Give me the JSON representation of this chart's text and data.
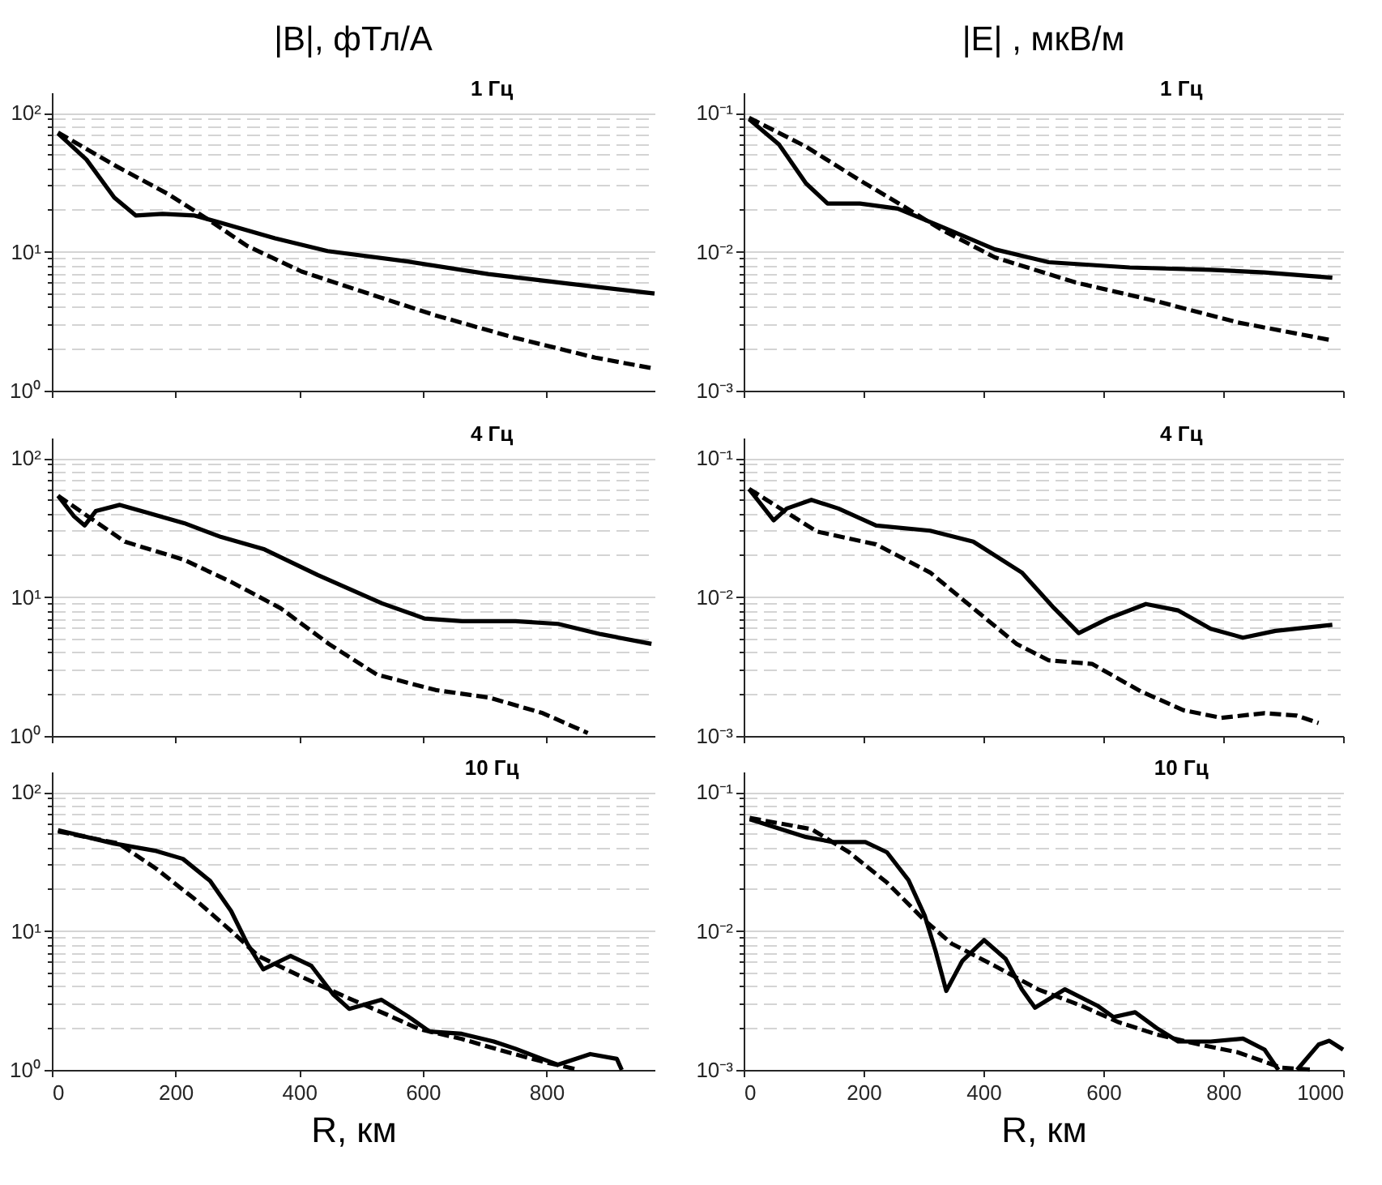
{
  "chart_data": [
    {
      "type": "line",
      "title": "|B|,  фТл/А",
      "annotations": [
        "1 Гц"
      ],
      "log": "y",
      "grid": "y",
      "tick_labels": "y",
      "xlim": [
        0,
        975
      ],
      "xticks": [
        0,
        200,
        400,
        600,
        800
      ],
      "ylim": [
        1,
        140
      ],
      "yticks": [
        {
          "value": 1,
          "label": "10⁰"
        },
        {
          "value": 2,
          "label": null
        },
        {
          "value": 3,
          "label": null
        },
        {
          "value": 4,
          "label": null
        },
        {
          "value": 5,
          "label": null
        },
        {
          "value": 6,
          "label": null
        },
        {
          "value": 7,
          "label": null
        },
        {
          "value": 8,
          "label": null
        },
        {
          "value": 9,
          "label": null
        },
        {
          "value": 10,
          "label": "10¹"
        },
        {
          "value": 20,
          "label": null
        },
        {
          "value": 30,
          "label": null
        },
        {
          "value": 40,
          "label": null
        },
        {
          "value": 50,
          "label": null
        },
        {
          "value": 60,
          "label": null
        },
        {
          "value": 70,
          "label": null
        },
        {
          "value": 80,
          "label": null
        },
        {
          "value": 90,
          "label": null
        },
        {
          "value": 100,
          "label": "10²"
        }
      ],
      "series": [
        {
          "color": "#000000",
          "line_style": "solid",
          "x": [
            10,
            56,
            101,
            136,
            179,
            231,
            274,
            361,
            446,
            576,
            706,
            835,
            975
          ],
          "values": [
            71,
            46,
            24.5,
            18.2,
            18.7,
            18.2,
            16.1,
            12.5,
            10.1,
            8.5,
            6.9,
            5.9,
            5.0
          ]
        },
        {
          "color": "#000000",
          "line_style": "dashed",
          "x": [
            10,
            101,
            188,
            249,
            316,
            404,
            489,
            619,
            749,
            879,
            975
          ],
          "values": [
            72,
            42,
            26,
            17.5,
            11,
            7.2,
            5.4,
            3.5,
            2.4,
            1.73,
            1.44
          ]
        }
      ]
    },
    {
      "type": "line",
      "title": "|E| , мкВ/м",
      "annotations": [
        "1 Гц"
      ],
      "log": "y",
      "grid": "y",
      "tick_labels": "y",
      "xlim": [
        0,
        1000
      ],
      "xticks": [
        0,
        200,
        400,
        600,
        800,
        1000
      ],
      "ylim": [
        0.001,
        0.14
      ],
      "yticks": [
        {
          "value": 0.001,
          "label": "10⁻³"
        },
        {
          "value": 0.002,
          "label": null
        },
        {
          "value": 0.003,
          "label": null
        },
        {
          "value": 0.004,
          "label": null
        },
        {
          "value": 0.005,
          "label": null
        },
        {
          "value": 0.006,
          "label": null
        },
        {
          "value": 0.007,
          "label": null
        },
        {
          "value": 0.008,
          "label": null
        },
        {
          "value": 0.009,
          "label": null
        },
        {
          "value": 0.01,
          "label": "10⁻²"
        },
        {
          "value": 0.02,
          "label": null
        },
        {
          "value": 0.03,
          "label": null
        },
        {
          "value": 0.04,
          "label": null
        },
        {
          "value": 0.05,
          "label": null
        },
        {
          "value": 0.06,
          "label": null
        },
        {
          "value": 0.07,
          "label": null
        },
        {
          "value": 0.08,
          "label": null
        },
        {
          "value": 0.09,
          "label": null
        },
        {
          "value": 0.1,
          "label": "10⁻¹"
        }
      ],
      "series": [
        {
          "color": "#000000",
          "line_style": "solid",
          "x": [
            9,
            59,
            104,
            140,
            194,
            257,
            329,
            419,
            509,
            644,
            779,
            869,
            982
          ],
          "values": [
            0.09,
            0.059,
            0.031,
            0.0222,
            0.0222,
            0.0204,
            0.0152,
            0.0104,
            0.0084,
            0.0077,
            0.0074,
            0.0071,
            0.0065
          ]
        },
        {
          "color": "#000000",
          "line_style": "dashed",
          "x": [
            9,
            104,
            194,
            266,
            329,
            419,
            554,
            689,
            824,
            982
          ],
          "values": [
            0.092,
            0.057,
            0.0326,
            0.0213,
            0.0145,
            0.0091,
            0.006,
            0.0044,
            0.0031,
            0.0023
          ]
        }
      ]
    },
    {
      "type": "line",
      "annotations": [
        "4 Гц"
      ],
      "log": "y",
      "grid": "y",
      "tick_labels": "y",
      "xlim": [
        0,
        975
      ],
      "xticks": [
        0,
        200,
        400,
        600,
        800
      ],
      "ylim": [
        1,
        140
      ],
      "yticks": [
        {
          "value": 1,
          "label": "10⁰"
        },
        {
          "value": 2,
          "label": null
        },
        {
          "value": 3,
          "label": null
        },
        {
          "value": 4,
          "label": null
        },
        {
          "value": 5,
          "label": null
        },
        {
          "value": 6,
          "label": null
        },
        {
          "value": 7,
          "label": null
        },
        {
          "value": 8,
          "label": null
        },
        {
          "value": 9,
          "label": null
        },
        {
          "value": 10,
          "label": "10¹"
        },
        {
          "value": 20,
          "label": null
        },
        {
          "value": 30,
          "label": null
        },
        {
          "value": 40,
          "label": null
        },
        {
          "value": 50,
          "label": null
        },
        {
          "value": 60,
          "label": null
        },
        {
          "value": 70,
          "label": null
        },
        {
          "value": 80,
          "label": null
        },
        {
          "value": 90,
          "label": null
        },
        {
          "value": 100,
          "label": "10²"
        }
      ],
      "series": [
        {
          "color": "#000000",
          "line_style": "solid",
          "x": [
            10,
            36,
            53,
            71,
            110,
            145,
            214,
            274,
            344,
            430,
            534,
            603,
            664,
            750,
            819,
            888,
            970
          ],
          "values": [
            53.5,
            38,
            32.7,
            41.5,
            46,
            41.5,
            34,
            27,
            22,
            14.4,
            9.0,
            7.0,
            6.7,
            6.7,
            6.4,
            5.4,
            4.6
          ]
        },
        {
          "color": "#000000",
          "line_style": "dashed",
          "x": [
            10,
            118,
            214,
            292,
            370,
            448,
            526,
            621,
            707,
            794,
            867
          ],
          "values": [
            53.5,
            25,
            18.5,
            12.7,
            8.3,
            4.6,
            2.76,
            2.14,
            1.89,
            1.46,
            1.05
          ]
        }
      ]
    },
    {
      "type": "line",
      "annotations": [
        "4 Гц"
      ],
      "log": "y",
      "grid": "y",
      "tick_labels": "y",
      "xlim": [
        0,
        1000
      ],
      "xticks": [
        0,
        200,
        400,
        600,
        800,
        1000
      ],
      "ylim": [
        0.001,
        0.14
      ],
      "yticks": [
        {
          "value": 0.001,
          "label": "10⁻³"
        },
        {
          "value": 0.002,
          "label": null
        },
        {
          "value": 0.003,
          "label": null
        },
        {
          "value": 0.004,
          "label": null
        },
        {
          "value": 0.005,
          "label": null
        },
        {
          "value": 0.006,
          "label": null
        },
        {
          "value": 0.007,
          "label": null
        },
        {
          "value": 0.008,
          "label": null
        },
        {
          "value": 0.009,
          "label": null
        },
        {
          "value": 0.01,
          "label": "10⁻²"
        },
        {
          "value": 0.02,
          "label": null
        },
        {
          "value": 0.03,
          "label": null
        },
        {
          "value": 0.04,
          "label": null
        },
        {
          "value": 0.05,
          "label": null
        },
        {
          "value": 0.06,
          "label": null
        },
        {
          "value": 0.07,
          "label": null
        },
        {
          "value": 0.08,
          "label": null
        },
        {
          "value": 0.09,
          "label": null
        },
        {
          "value": 0.1,
          "label": "10⁻¹"
        }
      ],
      "series": [
        {
          "color": "#000000",
          "line_style": "solid",
          "x": [
            9,
            50,
            72,
            113,
            158,
            221,
            311,
            383,
            464,
            518,
            559,
            608,
            671,
            725,
            779,
            833,
            887,
            982
          ],
          "values": [
            0.0597,
            0.0356,
            0.0433,
            0.05,
            0.0433,
            0.0327,
            0.03,
            0.025,
            0.015,
            0.0083,
            0.0055,
            0.007,
            0.0089,
            0.008,
            0.0059,
            0.0051,
            0.0057,
            0.0063
          ]
        },
        {
          "color": "#000000",
          "line_style": "dashed",
          "x": [
            9,
            122,
            221,
            311,
            383,
            455,
            509,
            581,
            662,
            734,
            797,
            869,
            923,
            959
          ],
          "values": [
            0.06,
            0.0296,
            0.0239,
            0.015,
            0.0083,
            0.0046,
            0.0035,
            0.0033,
            0.0021,
            0.00153,
            0.00135,
            0.00146,
            0.0014,
            0.00124
          ]
        }
      ]
    },
    {
      "type": "line",
      "annotations": [
        "10  Гц"
      ],
      "xlabel": "R, км",
      "log": "y",
      "grid": "y",
      "xlim": [
        0,
        975
      ],
      "xticks": [
        0,
        200,
        400,
        600,
        800
      ],
      "ylim": [
        1,
        140
      ],
      "yticks": [
        {
          "value": 1,
          "label": "10⁰"
        },
        {
          "value": 2,
          "label": null
        },
        {
          "value": 3,
          "label": null
        },
        {
          "value": 4,
          "label": null
        },
        {
          "value": 5,
          "label": null
        },
        {
          "value": 6,
          "label": null
        },
        {
          "value": 7,
          "label": null
        },
        {
          "value": 8,
          "label": null
        },
        {
          "value": 9,
          "label": null
        },
        {
          "value": 10,
          "label": "10¹"
        },
        {
          "value": 20,
          "label": null
        },
        {
          "value": 30,
          "label": null
        },
        {
          "value": 40,
          "label": null
        },
        {
          "value": 50,
          "label": null
        },
        {
          "value": 60,
          "label": null
        },
        {
          "value": 70,
          "label": null
        },
        {
          "value": 80,
          "label": null
        },
        {
          "value": 90,
          "label": null
        },
        {
          "value": 100,
          "label": "10²"
        }
      ],
      "series": [
        {
          "color": "#000000",
          "line_style": "solid",
          "x": [
            10,
            100,
            169,
            212,
            256,
            290,
            316,
            342,
            386,
            420,
            455,
            481,
            533,
            576,
            611,
            663,
            715,
            750,
            793,
            819,
            871,
            914,
            922
          ],
          "values": [
            53,
            42.6,
            37.6,
            33,
            22.9,
            13.9,
            8.1,
            5.3,
            6.6,
            5.6,
            3.5,
            2.75,
            3.2,
            2.43,
            1.89,
            1.82,
            1.6,
            1.42,
            1.2,
            1.09,
            1.3,
            1.2,
            1.0
          ]
        },
        {
          "color": "#000000",
          "line_style": "dashed",
          "x": [
            10,
            108,
            169,
            230,
            290,
            334,
            403,
            472,
            542,
            594,
            663,
            732,
            793,
            853
          ],
          "values": [
            52,
            42.6,
            28,
            17.1,
            10,
            6.6,
            4.7,
            3.4,
            2.5,
            1.97,
            1.67,
            1.36,
            1.15,
            1.0
          ]
        }
      ]
    },
    {
      "type": "line",
      "annotations": [
        "10 Гц"
      ],
      "xlabel": "R, км",
      "log": "y",
      "grid": "y",
      "xlim": [
        0,
        1000
      ],
      "xticks": [
        0,
        200,
        400,
        600,
        800,
        1000
      ],
      "ylim": [
        0.001,
        0.14
      ],
      "yticks": [
        {
          "value": 0.001,
          "label": "10⁻³"
        },
        {
          "value": 0.002,
          "label": null
        },
        {
          "value": 0.003,
          "label": null
        },
        {
          "value": 0.004,
          "label": null
        },
        {
          "value": 0.005,
          "label": null
        },
        {
          "value": 0.006,
          "label": null
        },
        {
          "value": 0.007,
          "label": null
        },
        {
          "value": 0.008,
          "label": null
        },
        {
          "value": 0.009,
          "label": null
        },
        {
          "value": 0.01,
          "label": "10⁻²"
        },
        {
          "value": 0.02,
          "label": null
        },
        {
          "value": 0.03,
          "label": null
        },
        {
          "value": 0.04,
          "label": null
        },
        {
          "value": 0.05,
          "label": null
        },
        {
          "value": 0.06,
          "label": null
        },
        {
          "value": 0.07,
          "label": null
        },
        {
          "value": 0.08,
          "label": null
        },
        {
          "value": 0.09,
          "label": null
        },
        {
          "value": 0.1,
          "label": "10⁻¹"
        }
      ],
      "series": [
        {
          "color": "#000000",
          "line_style": "solid",
          "x": [
            10,
            104,
            149,
            203,
            239,
            275,
            302,
            320,
            338,
            365,
            401,
            437,
            464,
            486,
            536,
            590,
            617,
            653,
            689,
            725,
            779,
            833,
            869,
            892,
            900,
            915,
            923,
            959,
            977,
            1000
          ],
          "values": [
            0.0636,
            0.0474,
            0.0436,
            0.0436,
            0.0368,
            0.0232,
            0.0129,
            0.0072,
            0.0037,
            0.0061,
            0.0086,
            0.0063,
            0.0038,
            0.0028,
            0.0038,
            0.0029,
            0.0024,
            0.0026,
            0.002,
            0.0016,
            0.0016,
            0.00168,
            0.0014,
            0.001,
            null,
            null,
            0.001,
            0.00152,
            0.00162,
            0.0014
          ]
        },
        {
          "color": "#000000",
          "line_style": "dashed",
          "x": [
            10,
            113,
            176,
            239,
            302,
            347,
            419,
            491,
            563,
            626,
            689,
            761,
            824,
            896,
            950
          ],
          "values": [
            0.065,
            0.054,
            0.0368,
            0.0223,
            0.0119,
            0.0081,
            0.0056,
            0.0038,
            0.0029,
            0.0022,
            0.0018,
            0.00152,
            0.00134,
            0.00104,
            0.001
          ]
        }
      ]
    }
  ]
}
